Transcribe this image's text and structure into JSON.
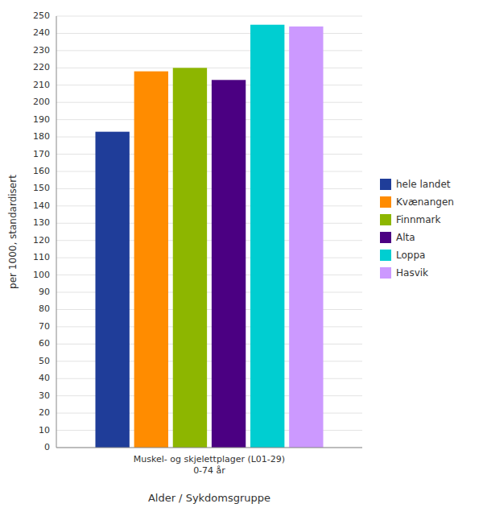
{
  "chart_data": {
    "type": "bar",
    "categories": [
      "Muskel- og skjelettplager (L01-29)\n0-74 år"
    ],
    "series": [
      {
        "name": "hele landet",
        "color": "#1f3d99",
        "values": [
          183
        ]
      },
      {
        "name": "Kvænangen",
        "color": "#ff8c00",
        "values": [
          218
        ]
      },
      {
        "name": "Finnmark",
        "color": "#8db600",
        "values": [
          220
        ]
      },
      {
        "name": "Alta",
        "color": "#4b0082",
        "values": [
          213
        ]
      },
      {
        "name": "Loppa",
        "color": "#00ced1",
        "values": [
          245
        ]
      },
      {
        "name": "Hasvik",
        "color": "#cc99ff",
        "values": [
          244
        ]
      }
    ],
    "x_label": "Alder / Sykdomsgruppe",
    "y_label": "per 1000, standardisert",
    "ylim": [
      0,
      250
    ],
    "yticks": [
      0,
      10,
      20,
      30,
      40,
      50,
      60,
      70,
      80,
      90,
      100,
      110,
      120,
      130,
      140,
      150,
      160,
      170,
      180,
      190,
      200,
      210,
      220,
      230,
      240,
      250
    ],
    "grid": true,
    "legend": "right"
  }
}
